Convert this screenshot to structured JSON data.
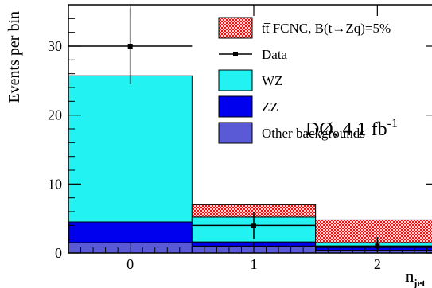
{
  "chart_data": {
    "type": "bar",
    "stacked": true,
    "xlabel_main": "n",
    "xlabel_sub": "jet",
    "ylabel": "Events per bin",
    "categories": [
      "0",
      "1",
      "2"
    ],
    "bin_edges": [
      -0.5,
      0.5,
      1.5,
      2.5
    ],
    "xlim": [
      -0.5,
      2.5
    ],
    "ylim": [
      0,
      36
    ],
    "x_ticks": [
      "0",
      "1",
      "2"
    ],
    "y_ticks": [
      "0",
      "10",
      "20",
      "30"
    ],
    "y_tick_values": [
      0,
      10,
      20,
      30
    ],
    "stack_series": [
      {
        "name": "Other backgrounds",
        "values": [
          1.5,
          1.0,
          0.4
        ],
        "color": "#5a5ad6"
      },
      {
        "name": "ZZ",
        "values": [
          3.0,
          0.6,
          0.4
        ],
        "color": "#0000ee"
      },
      {
        "name": "WZ",
        "values": [
          21.2,
          3.6,
          0.7
        ],
        "color": "#22f2f2"
      },
      {
        "name": "tt̅ FCNC, B(t→Zq)=5%",
        "values": [
          0.0,
          1.8,
          3.3
        ],
        "color": "#ee1111"
      }
    ],
    "data_points": {
      "name": "Data",
      "x": [
        0,
        1,
        2
      ],
      "y": [
        30,
        4,
        1
      ],
      "yerr_low": [
        5.5,
        2.0,
        0.8
      ],
      "yerr_high": [
        5.5,
        2.0,
        1.3
      ]
    },
    "legend": {
      "placement": "top-right",
      "entries": [
        {
          "label_main": "tt̅ FCNC, B(t→Zq)=5%",
          "kind": "hatched",
          "color": "#ee1111"
        },
        {
          "label_main": "Data",
          "kind": "marker",
          "color": "#000000"
        },
        {
          "label_main": "WZ",
          "kind": "box",
          "color": "#22f2f2"
        },
        {
          "label_main": "ZZ",
          "kind": "box",
          "color": "#0000ee"
        },
        {
          "label_main": "Other backgrounds",
          "kind": "box",
          "color": "#5a5ad6"
        }
      ]
    },
    "annotation": {
      "main": "DØ, 4.1 fb",
      "sup": "-1"
    }
  }
}
